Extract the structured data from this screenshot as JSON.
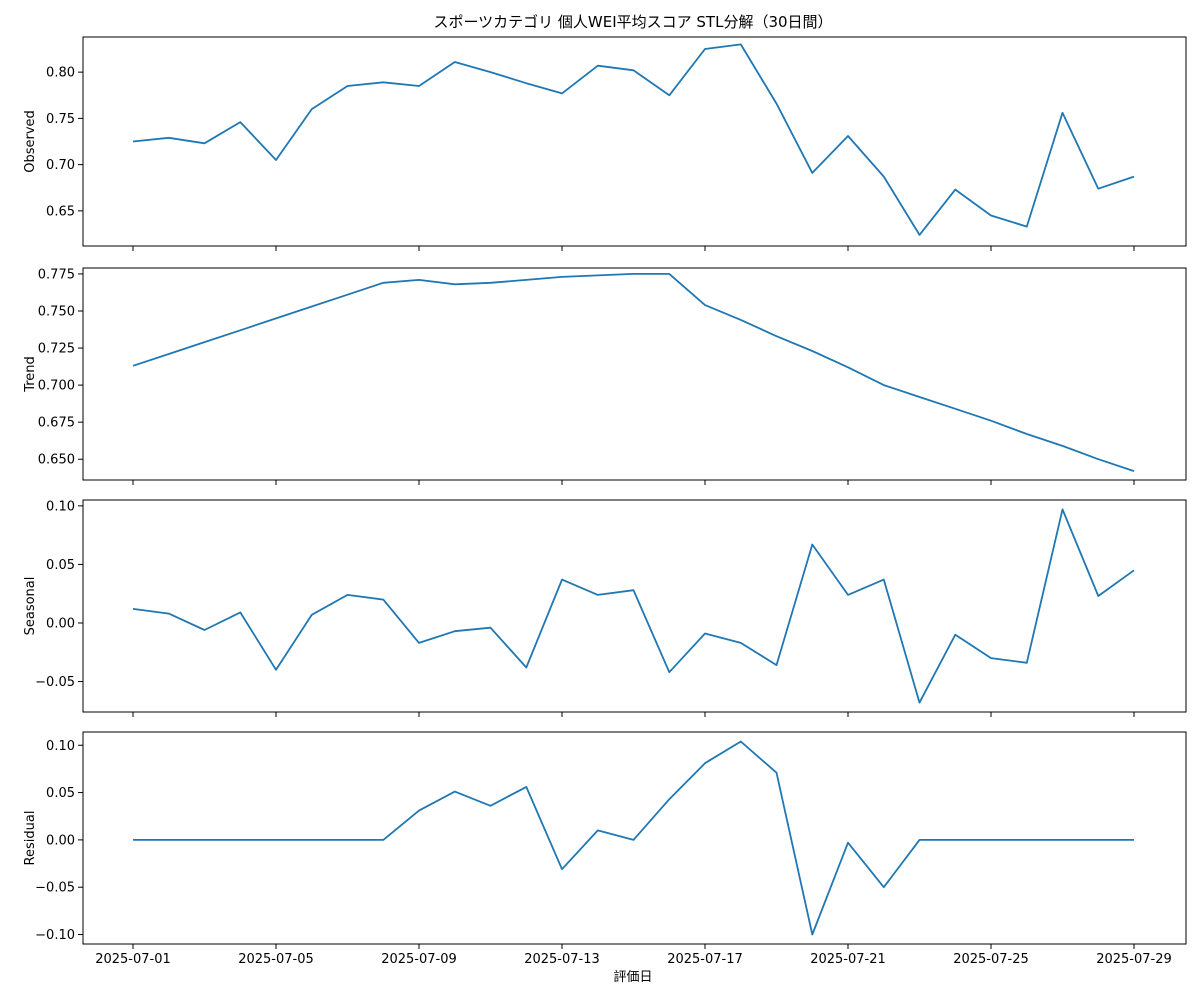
{
  "figure": {
    "title": "スポーツカテゴリ 個人WEI平均スコア STL分解（30日間）",
    "xlabel": "評価日"
  },
  "chart_data": {
    "type": "line",
    "title": "スポーツカテゴリ 個人WEI平均スコア STL分解（30日間）",
    "xlabel": "評価日",
    "x": [
      "2025-07-01",
      "2025-07-02",
      "2025-07-03",
      "2025-07-04",
      "2025-07-05",
      "2025-07-06",
      "2025-07-07",
      "2025-07-08",
      "2025-07-09",
      "2025-07-10",
      "2025-07-11",
      "2025-07-12",
      "2025-07-13",
      "2025-07-14",
      "2025-07-15",
      "2025-07-16",
      "2025-07-17",
      "2025-07-18",
      "2025-07-19",
      "2025-07-20",
      "2025-07-21",
      "2025-07-22",
      "2025-07-23",
      "2025-07-24",
      "2025-07-25",
      "2025-07-26",
      "2025-07-27",
      "2025-07-28",
      "2025-07-29"
    ],
    "xticks": [
      "2025-07-01",
      "2025-07-05",
      "2025-07-09",
      "2025-07-13",
      "2025-07-17",
      "2025-07-21",
      "2025-07-25",
      "2025-07-29"
    ],
    "line_color": "#1f77b4",
    "panels": [
      {
        "ylabel": "Observed",
        "ylim": [
          0.612,
          0.838
        ],
        "yticks": [
          "0.65",
          "0.70",
          "0.75",
          "0.80"
        ],
        "values": [
          0.725,
          0.729,
          0.723,
          0.746,
          0.705,
          0.76,
          0.785,
          0.789,
          0.785,
          0.811,
          0.8,
          0.788,
          0.777,
          0.807,
          0.802,
          0.775,
          0.825,
          0.83,
          0.766,
          0.691,
          0.731,
          0.687,
          0.624,
          0.673,
          0.645,
          0.633,
          0.756,
          0.674,
          0.687
        ]
      },
      {
        "ylabel": "Trend",
        "ylim": [
          0.636,
          0.779
        ],
        "yticks": [
          "0.650",
          "0.675",
          "0.700",
          "0.725",
          "0.750",
          "0.775"
        ],
        "values": [
          0.713,
          0.721,
          0.729,
          0.737,
          0.745,
          0.753,
          0.761,
          0.769,
          0.771,
          0.768,
          0.769,
          0.771,
          0.773,
          0.774,
          0.775,
          0.775,
          0.754,
          0.744,
          0.733,
          0.723,
          0.712,
          0.7,
          0.692,
          0.684,
          0.676,
          0.667,
          0.659,
          0.65,
          0.642
        ]
      },
      {
        "ylabel": "Seasonal",
        "ylim": [
          -0.076,
          0.105
        ],
        "yticks": [
          "−0.05",
          "0.00",
          "0.05",
          "0.10"
        ],
        "values": [
          0.012,
          0.008,
          -0.006,
          0.009,
          -0.04,
          0.007,
          0.024,
          0.02,
          -0.017,
          -0.007,
          -0.004,
          -0.038,
          0.037,
          0.024,
          0.028,
          -0.042,
          -0.009,
          -0.017,
          -0.036,
          0.067,
          0.024,
          0.037,
          -0.068,
          -0.01,
          -0.03,
          -0.034,
          0.097,
          0.023,
          0.045
        ]
      },
      {
        "ylabel": "Residual",
        "ylim": [
          -0.11,
          0.114
        ],
        "yticks": [
          "−0.10",
          "−0.05",
          "0.00",
          "0.05",
          "0.10"
        ],
        "values": [
          0,
          0,
          0,
          0,
          0,
          0,
          0,
          0,
          0.031,
          0.051,
          0.036,
          0.056,
          -0.031,
          0.01,
          0,
          0.043,
          0.081,
          0.104,
          0.071,
          -0.1,
          -0.003,
          -0.05,
          0,
          0,
          0,
          0,
          0,
          0,
          0
        ]
      }
    ]
  }
}
